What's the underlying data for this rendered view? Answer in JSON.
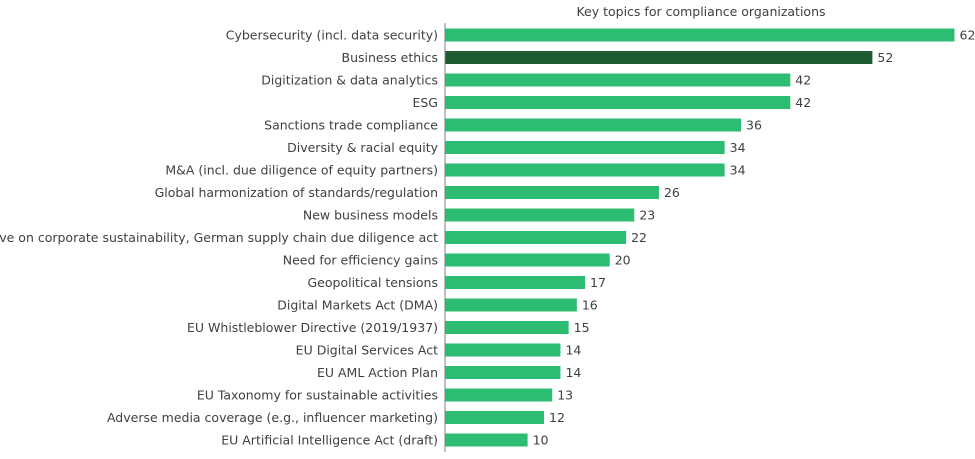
{
  "chart_data": {
    "type": "bar",
    "orientation": "horizontal",
    "title": "Key topics for compliance organizations",
    "xlabel": "",
    "ylabel": "",
    "xlim": [
      0,
      62
    ],
    "grid": false,
    "legend": "none",
    "colors": {
      "bar": "#2dbd72",
      "highlight": "#1f5c34",
      "axis": "#7f7f7f",
      "text": "#404040"
    },
    "highlight_index": 1,
    "categories": [
      "Cybersecurity (incl. data security)",
      "Business ethics",
      "Digitization & data analytics",
      "ESG",
      "Sanctions trade compliance",
      "Diversity & racial equity",
      "M&A (incl. due diligence of equity partners)",
      "Global harmonization of standards/regulation",
      "New business models",
      "EU Directive on corporate sustainability, German supply chain due diligence act",
      "Need for efficiency gains",
      "Geopolitical tensions",
      "Digital Markets Act (DMA)",
      "EU Whistleblower Directive (2019/1937)",
      "EU Digital Services Act",
      "EU AML Action Plan",
      "EU Taxonomy for sustainable activities",
      "Adverse media coverage (e.g., influencer marketing)",
      "EU Artificial Intelligence Act (draft)"
    ],
    "values": [
      62,
      52,
      42,
      42,
      36,
      34,
      34,
      26,
      23,
      22,
      20,
      17,
      16,
      15,
      14,
      14,
      13,
      12,
      10
    ]
  }
}
